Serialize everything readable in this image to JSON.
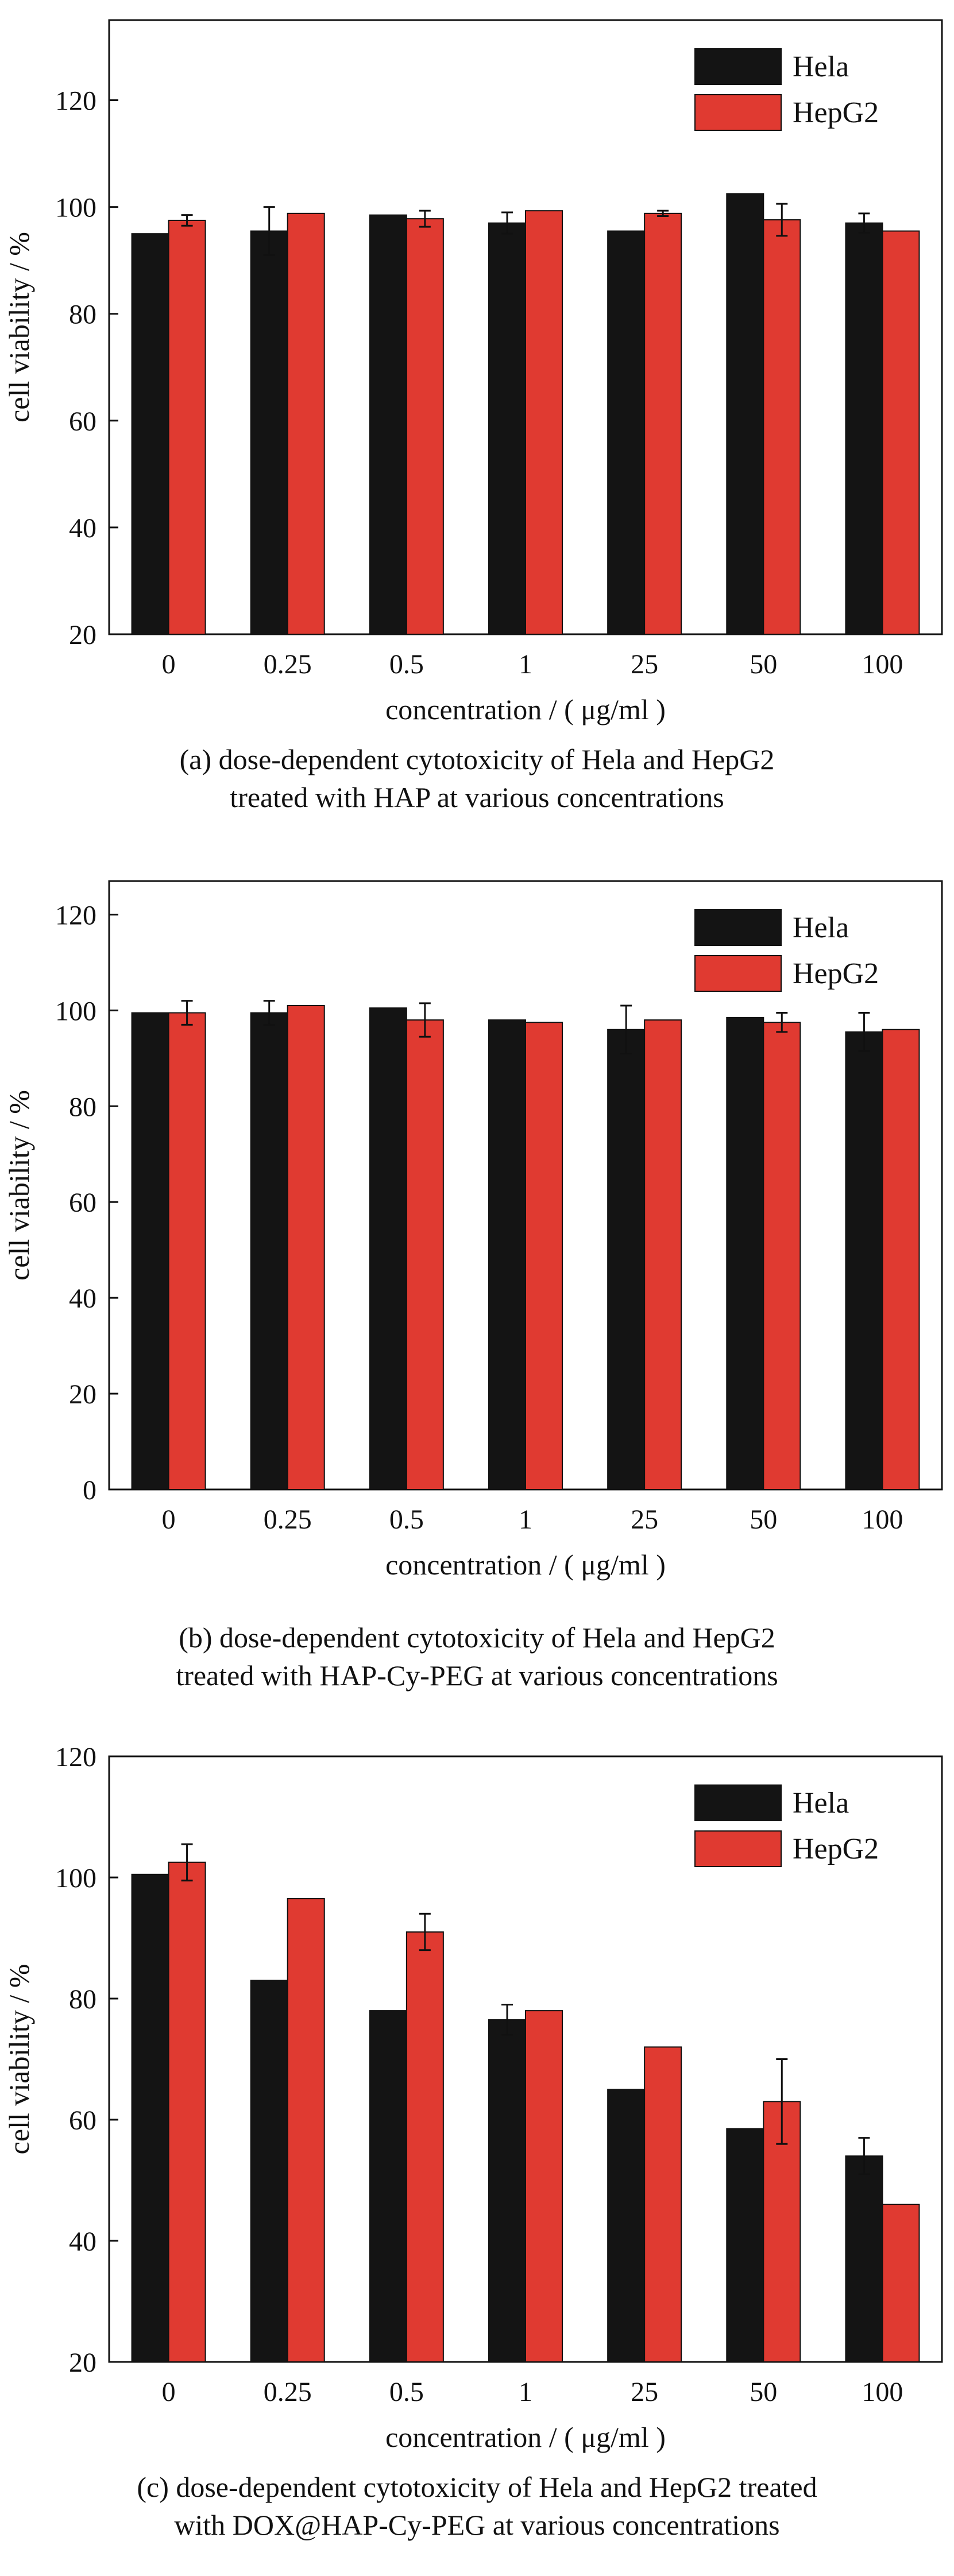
{
  "colors": {
    "hela": "#141414",
    "hepg2": "#e03a31",
    "axis": "#111111",
    "background": "#ffffff"
  },
  "chart_data": [
    {
      "type": "bar",
      "panel": "a",
      "categories": [
        "0",
        "0.25",
        "0.5",
        "1",
        "25",
        "50",
        "100"
      ],
      "series": [
        {
          "name": "Hela",
          "values": [
            95,
            95.5,
            98.5,
            97,
            95.5,
            102.5,
            97
          ],
          "errors": [
            0,
            4.5,
            0,
            2,
            0,
            0,
            1.8
          ]
        },
        {
          "name": "HepG2",
          "values": [
            97.5,
            98.8,
            97.8,
            99.3,
            98.8,
            97.6,
            95.5
          ],
          "errors": [
            1,
            0,
            1.5,
            0,
            0.5,
            3,
            0
          ]
        }
      ],
      "xlabel": "concentration / ( μg/ml )",
      "ylabel": "cell viability / %",
      "ylim": [
        20,
        135
      ],
      "yticks": [
        20,
        40,
        60,
        80,
        100,
        120
      ],
      "legend_position": "top-right",
      "caption": [
        "(a) dose-dependent cytotoxicity of Hela and HepG2",
        "treated with HAP at various concentrations"
      ]
    },
    {
      "type": "bar",
      "panel": "b",
      "categories": [
        "0",
        "0.25",
        "0.5",
        "1",
        "25",
        "50",
        "100"
      ],
      "series": [
        {
          "name": "Hela",
          "values": [
            99.5,
            99.5,
            100.5,
            98,
            96,
            98.5,
            95.5
          ],
          "errors": [
            0,
            2.5,
            0,
            0,
            5,
            0,
            4
          ]
        },
        {
          "name": "HepG2",
          "values": [
            99.5,
            101,
            98,
            97.5,
            98,
            97.5,
            96
          ],
          "errors": [
            2.5,
            0,
            3.5,
            0,
            0,
            2,
            0
          ]
        }
      ],
      "xlabel": "concentration / ( μg/ml )",
      "ylabel": "cell viability / %",
      "ylim": [
        0,
        127
      ],
      "yticks": [
        0,
        20,
        40,
        60,
        80,
        100,
        120
      ],
      "legend_position": "top-right",
      "caption": [
        "(b)  dose-dependent cytotoxicity of Hela and HepG2",
        "treated with HAP-Cy-PEG at various concentrations"
      ]
    },
    {
      "type": "bar",
      "panel": "c",
      "categories": [
        "0",
        "0.25",
        "0.5",
        "1",
        "25",
        "50",
        "100"
      ],
      "series": [
        {
          "name": "Hela",
          "values": [
            100.5,
            83,
            78,
            76.5,
            65,
            58.5,
            54
          ],
          "errors": [
            0,
            0,
            0,
            2.5,
            0,
            0,
            3
          ]
        },
        {
          "name": "HepG2",
          "values": [
            102.5,
            96.5,
            91,
            78,
            72,
            63,
            46
          ],
          "errors": [
            3,
            0,
            3,
            0,
            0,
            7,
            0
          ]
        }
      ],
      "xlabel": "concentration / ( μg/ml )",
      "ylabel": "cell viability / %",
      "ylim": [
        20,
        120
      ],
      "yticks": [
        20,
        40,
        60,
        80,
        100,
        120
      ],
      "legend_position": "top-right",
      "caption": [
        "(c)  dose-dependent cytotoxicity of Hela and HepG2 treated",
        "with DOX@HAP-Cy-PEG at various concentrations"
      ]
    }
  ]
}
